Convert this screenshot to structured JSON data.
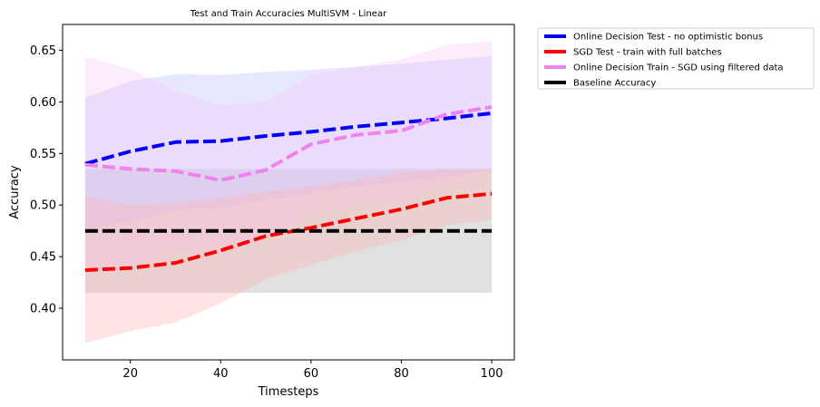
{
  "chart_data": {
    "type": "line",
    "title": "Test and Train Accuracies MultiSVM - Linear",
    "xlabel": "Timesteps",
    "ylabel": "Accuracy",
    "xlim": [
      5,
      105
    ],
    "ylim": [
      0.35,
      0.675
    ],
    "xticks": [
      20,
      40,
      60,
      80,
      100
    ],
    "yticks": [
      0.4,
      0.45,
      0.5,
      0.55,
      0.6,
      0.65
    ],
    "grid": false,
    "legend_position": "outside top-right",
    "x": [
      10,
      20,
      30,
      40,
      50,
      60,
      70,
      80,
      90,
      100
    ],
    "series": [
      {
        "name": "Online Decision Test - no optimistic bonus",
        "color": "#0000ff",
        "band_color": "#bbbbff",
        "values": [
          0.54,
          0.552,
          0.561,
          0.562,
          0.567,
          0.571,
          0.576,
          0.58,
          0.584,
          0.589
        ],
        "upper": [
          0.604,
          0.62,
          0.627,
          0.626,
          0.629,
          0.631,
          0.634,
          0.637,
          0.641,
          0.644
        ],
        "lower": [
          0.476,
          0.484,
          0.495,
          0.498,
          0.505,
          0.511,
          0.518,
          0.523,
          0.527,
          0.534
        ]
      },
      {
        "name": "SGD Test - train with full batches",
        "color": "#ff0000",
        "band_color": "#ffb3b3",
        "values": [
          0.437,
          0.439,
          0.444,
          0.456,
          0.47,
          0.478,
          0.487,
          0.496,
          0.507,
          0.511
        ],
        "upper": [
          0.508,
          0.5,
          0.502,
          0.507,
          0.513,
          0.518,
          0.524,
          0.531,
          0.535,
          0.535
        ],
        "lower": [
          0.366,
          0.378,
          0.386,
          0.405,
          0.428,
          0.442,
          0.455,
          0.466,
          0.48,
          0.486
        ]
      },
      {
        "name": "Online Decision Train - SGD using filtered data",
        "color": "#ee82ee",
        "band_color": "#f7c8f7",
        "values": [
          0.539,
          0.535,
          0.533,
          0.524,
          0.534,
          0.559,
          0.568,
          0.572,
          0.588,
          0.595
        ],
        "upper": [
          0.644,
          0.632,
          0.61,
          0.597,
          0.6,
          0.626,
          0.634,
          0.641,
          0.655,
          0.659
        ],
        "lower": [
          0.434,
          0.438,
          0.456,
          0.451,
          0.468,
          0.492,
          0.502,
          0.503,
          0.521,
          0.531
        ]
      },
      {
        "name": "Baseline Accuracy",
        "color": "#000000",
        "band_color": "#aaaaaa",
        "values": [
          0.475,
          0.475,
          0.475,
          0.475,
          0.475,
          0.475,
          0.475,
          0.475,
          0.475,
          0.475
        ],
        "upper": [
          0.535,
          0.535,
          0.535,
          0.535,
          0.535,
          0.535,
          0.535,
          0.535,
          0.535,
          0.535
        ],
        "lower": [
          0.415,
          0.415,
          0.415,
          0.415,
          0.415,
          0.415,
          0.415,
          0.415,
          0.415,
          0.415
        ]
      }
    ]
  }
}
